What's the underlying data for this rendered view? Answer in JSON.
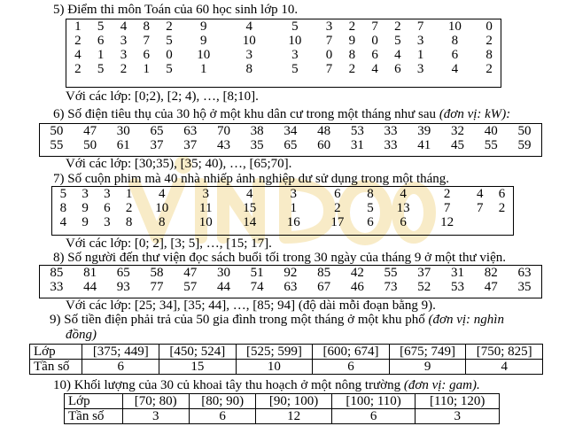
{
  "q5": {
    "title": "5) Điểm thi môn Toán của 60 học sinh lớp 10.",
    "rows": [
      [
        "1",
        "5",
        "4",
        "8",
        "2",
        "9",
        "4",
        "5",
        "3",
        "2",
        "7",
        "2",
        "7",
        "10",
        "0"
      ],
      [
        "2",
        "6",
        "3",
        "7",
        "5",
        "9",
        "10",
        "10",
        "7",
        "9",
        "0",
        "5",
        "3",
        "8",
        "2"
      ],
      [
        "4",
        "1",
        "3",
        "6",
        "0",
        "10",
        "3",
        "3",
        "0",
        "8",
        "6",
        "4",
        "1",
        "6",
        "8"
      ],
      [
        "2",
        "5",
        "2",
        "1",
        "5",
        "1",
        "8",
        "5",
        "7",
        "2",
        "4",
        "6",
        "3",
        "4",
        "2"
      ]
    ],
    "classes": "Với các lớp: [0;2), [2; 4), …, [8;10]."
  },
  "q6": {
    "title": "6) Số điện tiêu thụ của 30 hộ ở một khu dân cư trong một tháng như sau",
    "unit": "(đơn vị: kW):",
    "rows": [
      [
        "50",
        "47",
        "30",
        "65",
        "63",
        "70",
        "38",
        "34",
        "48",
        "53",
        "33",
        "39",
        "32",
        "40",
        "50"
      ],
      [
        "55",
        "50",
        "61",
        "37",
        "37",
        "43",
        "35",
        "65",
        "60",
        "31",
        "33",
        "41",
        "45",
        "55",
        "59"
      ]
    ],
    "classes": "Với các lớp: [30;35), [35; 40), …, [65;70]."
  },
  "q7": {
    "title": "7) Số cuộn phim mà 40 nhà nhiếp ảnh nghiệp dư sử dụng trong một tháng.",
    "rows": [
      [
        "5",
        "3",
        "3",
        "1",
        "4",
        "3",
        "4",
        "3",
        "6",
        "8",
        "4",
        "2",
        "4",
        "6"
      ],
      [
        "8",
        "9",
        "6",
        "2",
        "10",
        "11",
        "15",
        "1",
        "2",
        "5",
        "13",
        "7",
        "7",
        "2"
      ],
      [
        "4",
        "9",
        "3",
        "8",
        "8",
        "10",
        "14",
        "16",
        "17",
        "6",
        "6",
        "12",
        "",
        ""
      ]
    ],
    "classes": "Với các lớp: [0; 2], [3; 5], …, [15; 17]."
  },
  "q8": {
    "title": "8) Số người đến thư viện đọc sách buổi tối trong 30 ngày của tháng 9 ở một thư viện.",
    "rows": [
      [
        "85",
        "81",
        "65",
        "58",
        "47",
        "30",
        "51",
        "92",
        "85",
        "42",
        "55",
        "37",
        "31",
        "82",
        "63"
      ],
      [
        "33",
        "44",
        "93",
        "77",
        "57",
        "44",
        "74",
        "63",
        "67",
        "46",
        "73",
        "52",
        "53",
        "47",
        "35"
      ]
    ],
    "classes": "Với các lớp: [25; 34], [35; 44], …, [85; 94] (độ dài mỗi đoạn bằng 9)."
  },
  "q9": {
    "title_line1": "9) Số tiền điện phải trả của 50 gia đình trong một tháng ở một khu phố",
    "unit_line1": "(đơn vị: nghìn",
    "unit_line2": "đồng)",
    "header": "Lớp",
    "freq_label": "Tần số",
    "classes": [
      "[375; 449]",
      "[450; 524]",
      "[525; 599]",
      "[600; 674]",
      "[675; 749]",
      "[750; 825]"
    ],
    "freqs": [
      "6",
      "15",
      "10",
      "6",
      "9",
      "4"
    ]
  },
  "q10": {
    "title": "10) Khối lượng của 30 củ khoai tây thu hoạch ở một nông trường",
    "unit": "(đơn vị: gam).",
    "header": "Lớp",
    "freq_label": "Tần số",
    "classes": [
      "[70; 80)",
      "[80; 90)",
      "[90; 100)",
      "[100; 110)",
      "[110; 120)"
    ],
    "freqs": [
      "3",
      "6",
      "12",
      "6",
      "3"
    ]
  },
  "watermark": {
    "color": "#f4d98a"
  }
}
